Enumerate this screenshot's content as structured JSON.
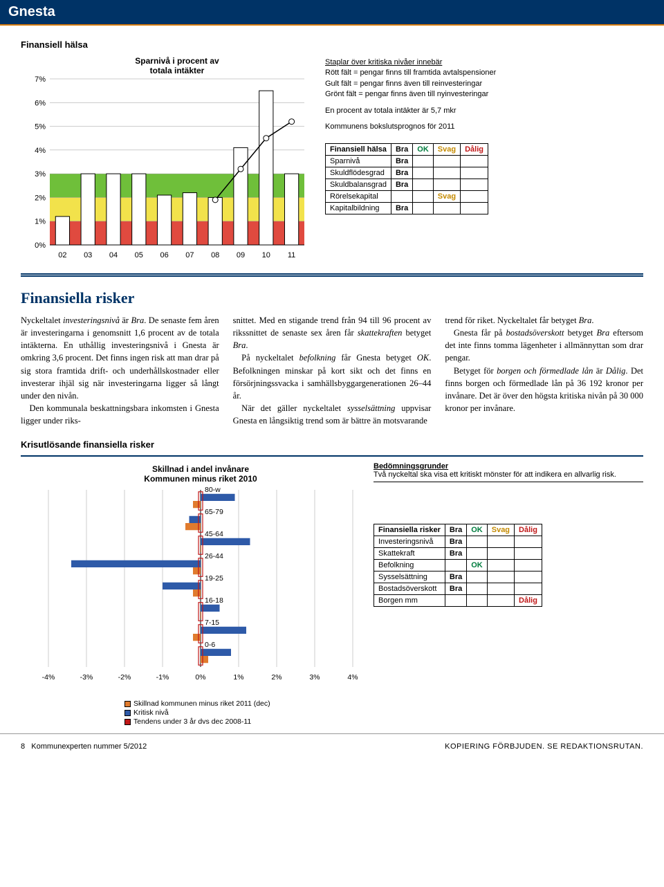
{
  "header": {
    "title": "Gnesta"
  },
  "section1": {
    "heading": "Finansiell hälsa",
    "chart": {
      "title_line1": "Sparnivå i procent av",
      "title_line2": "totala intäkter",
      "type": "bar",
      "years": [
        "02",
        "03",
        "04",
        "05",
        "06",
        "07",
        "08",
        "09",
        "10",
        "11"
      ],
      "bar_values": [
        1.2,
        3.0,
        3.0,
        3.0,
        2.1,
        2.2,
        2.0,
        4.1,
        6.5,
        3.0
      ],
      "line_values": [
        null,
        null,
        null,
        null,
        null,
        null,
        1.9,
        3.2,
        4.5,
        5.2
      ],
      "yticks": [
        "0%",
        "1%",
        "2%",
        "3%",
        "4%",
        "5%",
        "6%",
        "7%"
      ],
      "ymax": 7,
      "bar_color": "#ffffff",
      "bar_border": "#000000",
      "line_color": "#000000",
      "band_green": "#6fbf3a",
      "band_yellow": "#f2e24b",
      "band_red": "#e04a3f",
      "background": "#ffffff",
      "grid_color": "#999999"
    },
    "legend": {
      "head": "Staplar över kritiska nivåer innebär",
      "l1": "Rött fält = pengar finns till framtida avtalspensioner",
      "l2": "Gult fält = pengar finns även till reinvesteringar",
      "l3": "Grönt fält = pengar finns även till nyinvesteringar",
      "note1": "En procent av totala intäkter är 5,7 mkr",
      "note2": "Kommunens bokslutsprognos för 2011"
    },
    "eval_table": {
      "header": [
        "Finansiell hälsa",
        "Bra",
        "OK",
        "Svag",
        "Dålig"
      ],
      "rows": [
        {
          "name": "Sparnivå",
          "rating": "Bra",
          "col": 0
        },
        {
          "name": "Skuldflödesgrad",
          "rating": "Bra",
          "col": 0
        },
        {
          "name": "Skuldbalansgrad",
          "rating": "Bra",
          "col": 0
        },
        {
          "name": "Rörelsekapital",
          "rating": "Svag",
          "col": 2
        },
        {
          "name": "Kapitalbildning",
          "rating": "Bra",
          "col": 0
        }
      ]
    }
  },
  "section2": {
    "heading": "Finansiella risker",
    "col1": "Nyckeltalet investeringsnivå är Bra. De senaste fem åren är investeringarna i genomsnitt 1,6 procent av de totala intäkterna. En uthållig investeringsnivå i Gnesta är omkring 3,6 procent. Det finns ingen risk att man drar på sig stora framtida drift- och underhållskostnader eller investerar ihjäl sig när investeringarna ligger så långt under den nivån.",
    "col1b": "Den kommunala beskattningsbara inkomsten i Gnesta ligger under riks-",
    "col2": "snittet. Med en stigande trend från 94 till 96 procent av rikssnittet de senaste sex åren får skattekraften betyget Bra.",
    "col2b": "På nyckeltalet befolkning får Gnesta betyget OK. Befolkningen minskar på kort sikt och det finns en försörjningssvacka i samhällsbyggargenerationen 26–44 år.",
    "col2c": "När det gäller nyckeltalet sysselsättning uppvisar Gnesta en långsiktig trend som är bättre än motsvarande",
    "col3": "trend för riket. Nyckeltalet får betyget Bra.",
    "col3b": "Gnesta får på bostadsöverskott betyget Bra eftersom det inte finns tomma lägenheter i allmännyttan som drar pengar.",
    "col3c": "Betyget för borgen och förmedlade lån är Dålig. Det finns borgen och förmedlade lån på 36 192 kronor per invånare. Det är över den högsta kritiska nivån på 30 000 kronor per invånare."
  },
  "section3": {
    "heading": "Krisutlösande finansiella risker",
    "chart": {
      "title_line1": "Skillnad i andel invånare",
      "title_line2": "Kommunen minus riket 2010",
      "type": "horizontal-bar",
      "groups": [
        "80-w",
        "65-79",
        "45-64",
        "26-44",
        "19-25",
        "16-18",
        "7-15",
        "0-6"
      ],
      "blue": [
        0.9,
        -0.3,
        1.3,
        -3.4,
        -1.0,
        0.5,
        1.2,
        0.8
      ],
      "orange": [
        -0.2,
        -0.4,
        0.0,
        -0.2,
        -0.2,
        0.0,
        -0.2,
        0.2
      ],
      "critical_pos": [
        0,
        0,
        0,
        0,
        0,
        0,
        0,
        0
      ],
      "xticks": [
        "-4%",
        "-3%",
        "-2%",
        "-1%",
        "0%",
        "1%",
        "2%",
        "3%",
        "4%"
      ],
      "xmin": -4,
      "xmax": 4,
      "bar_blue": "#2e5aa8",
      "bar_orange": "#e07b2e",
      "bar_red_border": "#c01818",
      "grid_color": "#999999"
    },
    "legend2": {
      "items": [
        {
          "color": "#e07b2e",
          "label": "Skillnad kommunen minus riket 2011 (dec)"
        },
        {
          "color": "#2e5aa8",
          "label": "Kritisk nivå"
        },
        {
          "color": "#c01818",
          "label": "Tendens under 3 år dvs dec 2008-11"
        }
      ]
    },
    "bed": {
      "title": "Bedömningsgrunder",
      "text": "Två nyckeltal ska visa ett kritiskt mönster för att indikera en allvarlig risk."
    },
    "eval_table": {
      "header": [
        "Finansiella risker",
        "Bra",
        "OK",
        "Svag",
        "Dålig"
      ],
      "rows": [
        {
          "name": "Investeringsnivå",
          "rating": "Bra",
          "col": 0
        },
        {
          "name": "Skattekraft",
          "rating": "Bra",
          "col": 0
        },
        {
          "name": "Befolkning",
          "rating": "OK",
          "col": 1
        },
        {
          "name": "Sysselsättning",
          "rating": "Bra",
          "col": 0
        },
        {
          "name": "Bostadsöverskott",
          "rating": "Bra",
          "col": 0
        },
        {
          "name": "Borgen mm",
          "rating": "Dålig",
          "col": 3
        }
      ]
    }
  },
  "footer": {
    "left_page": "8",
    "left_text": "Kommunexperten nummer 5/2012",
    "right": "KOPIERING FÖRBJUDEN. SE REDAKTIONSRUTAN."
  }
}
